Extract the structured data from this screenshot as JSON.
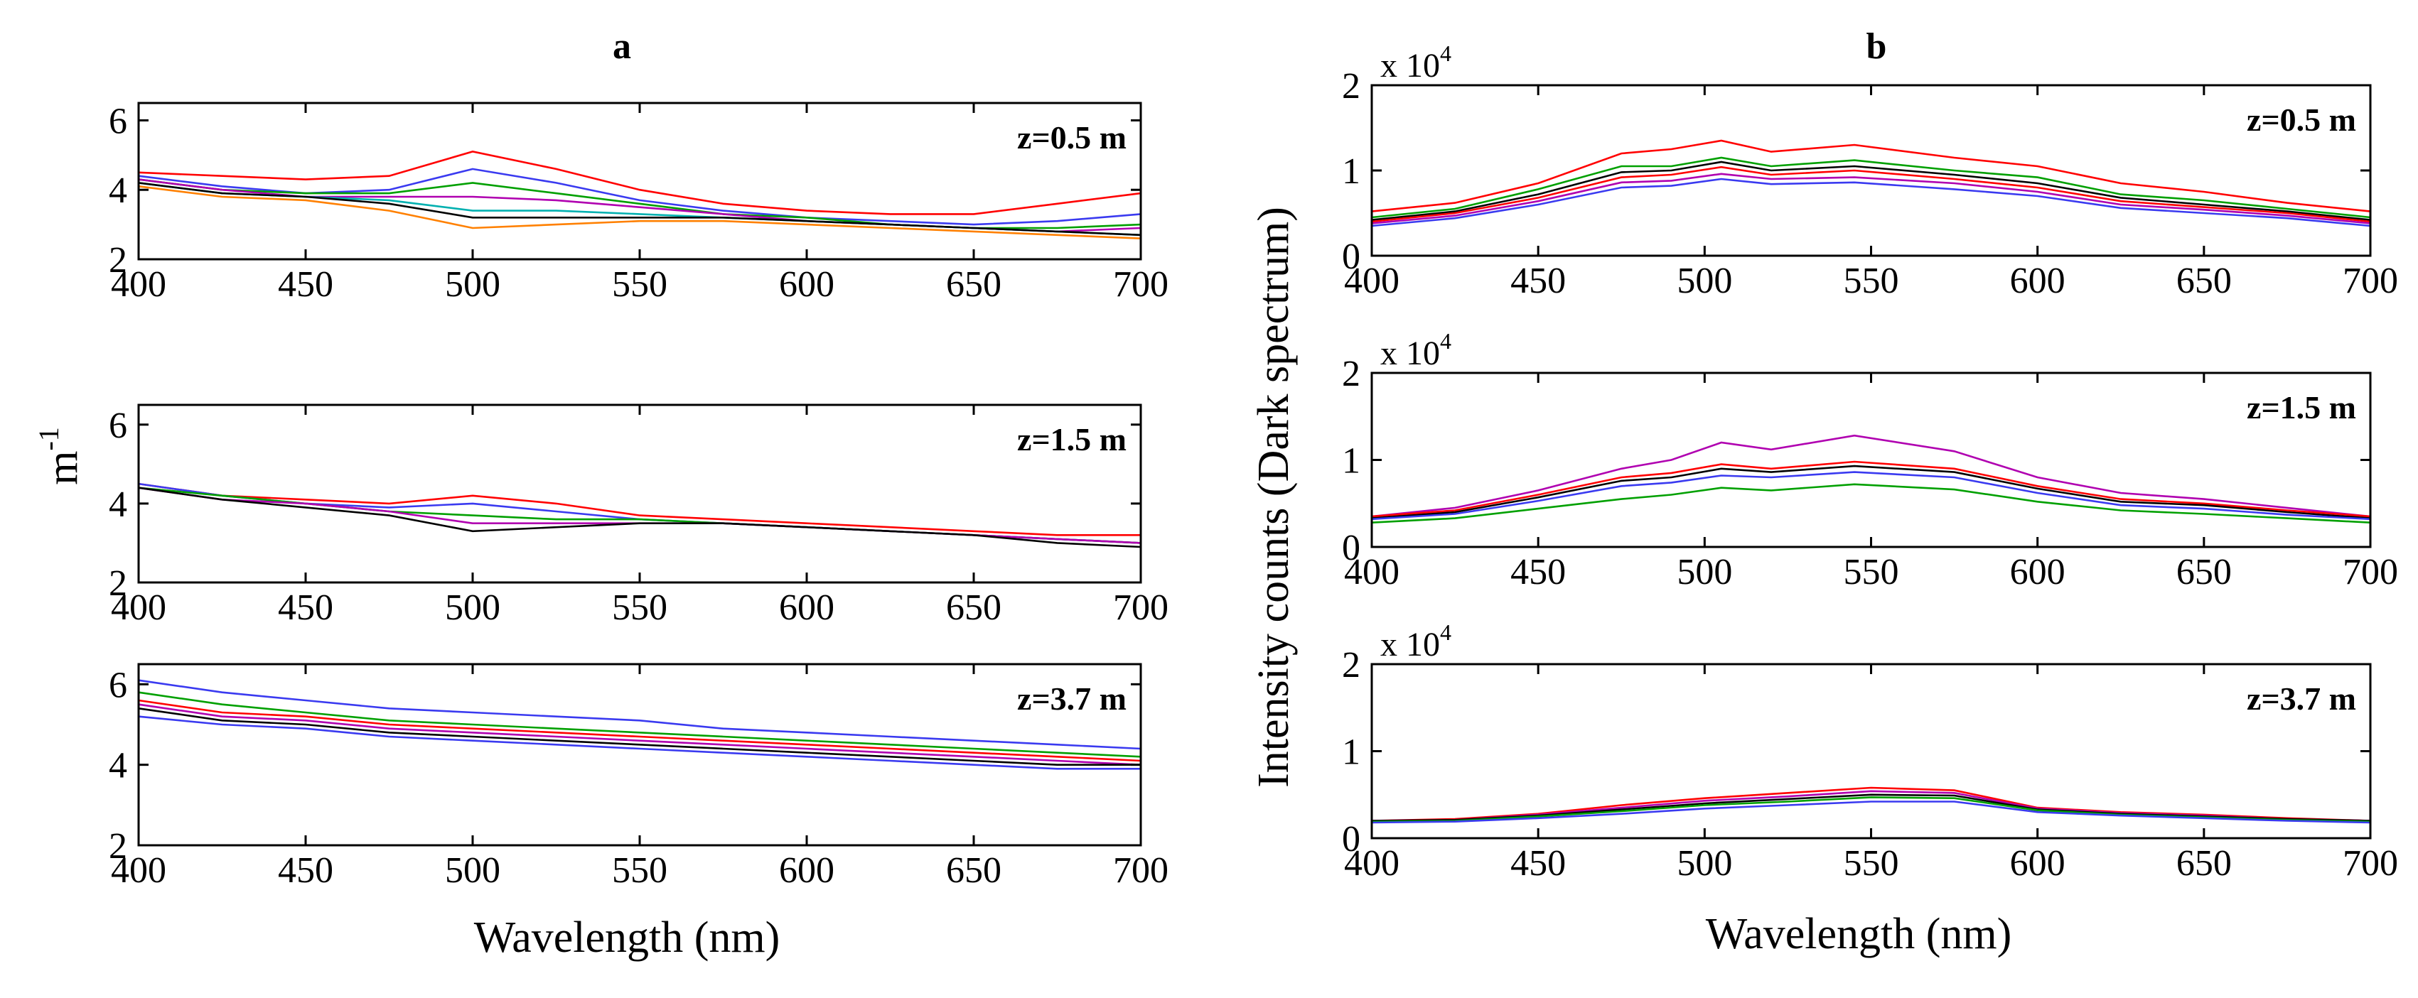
{
  "chart_data": [
    {
      "panel_tag": "a",
      "ylabel": "m",
      "ylabel_exponent": "-1",
      "xlabel": "Wavelength (nm)",
      "xlim": [
        400,
        700
      ],
      "xticks": [
        400,
        450,
        500,
        550,
        600,
        650,
        700
      ],
      "subplots": [
        {
          "type": "line",
          "label": "z=0.5 m",
          "ylim": [
            2,
            6.5
          ],
          "yticks": [
            2,
            4,
            6
          ],
          "x": [
            400,
            425,
            450,
            475,
            500,
            525,
            550,
            575,
            600,
            625,
            650,
            675,
            700
          ],
          "series": [
            {
              "color": "#ff0000",
              "values": [
                4.5,
                4.4,
                4.3,
                4.4,
                5.1,
                4.6,
                4.0,
                3.6,
                3.4,
                3.3,
                3.3,
                3.6,
                3.9
              ]
            },
            {
              "color": "#3a3af0",
              "values": [
                4.4,
                4.1,
                3.9,
                4.0,
                4.6,
                4.2,
                3.7,
                3.4,
                3.2,
                3.1,
                3.0,
                3.1,
                3.3
              ]
            },
            {
              "color": "#00a000",
              "values": [
                4.3,
                4.0,
                3.9,
                3.9,
                4.2,
                3.9,
                3.6,
                3.3,
                3.2,
                3.0,
                2.9,
                2.9,
                3.0
              ]
            },
            {
              "color": "#b000b0",
              "values": [
                4.3,
                4.0,
                3.8,
                3.8,
                3.8,
                3.7,
                3.5,
                3.3,
                3.1,
                3.0,
                2.9,
                2.8,
                2.9
              ]
            },
            {
              "color": "#00b0b0",
              "values": [
                4.2,
                3.9,
                3.8,
                3.7,
                3.4,
                3.4,
                3.3,
                3.2,
                3.1,
                3.0,
                2.9,
                2.8,
                2.7
              ]
            },
            {
              "color": "#000000",
              "values": [
                4.2,
                3.9,
                3.8,
                3.6,
                3.2,
                3.2,
                3.2,
                3.2,
                3.1,
                3.0,
                2.9,
                2.8,
                2.7
              ]
            },
            {
              "color": "#ff8000",
              "values": [
                4.1,
                3.8,
                3.7,
                3.4,
                2.9,
                3.0,
                3.1,
                3.1,
                3.0,
                2.9,
                2.8,
                2.7,
                2.6
              ]
            }
          ]
        },
        {
          "type": "line",
          "label": "z=1.5 m",
          "ylim": [
            2,
            6.5
          ],
          "yticks": [
            2,
            4,
            6
          ],
          "x": [
            400,
            425,
            450,
            475,
            500,
            525,
            550,
            575,
            600,
            625,
            650,
            675,
            700
          ],
          "series": [
            {
              "color": "#ff0000",
              "values": [
                4.5,
                4.2,
                4.1,
                4.0,
                4.2,
                4.0,
                3.7,
                3.6,
                3.5,
                3.4,
                3.3,
                3.2,
                3.2
              ]
            },
            {
              "color": "#3a3af0",
              "values": [
                4.5,
                4.2,
                4.0,
                3.9,
                4.0,
                3.8,
                3.6,
                3.5,
                3.4,
                3.3,
                3.2,
                3.1,
                3.0
              ]
            },
            {
              "color": "#00a000",
              "values": [
                4.4,
                4.2,
                4.0,
                3.8,
                3.7,
                3.6,
                3.6,
                3.5,
                3.4,
                3.3,
                3.2,
                3.1,
                3.0
              ]
            },
            {
              "color": "#b000b0",
              "values": [
                4.4,
                4.1,
                4.0,
                3.8,
                3.5,
                3.5,
                3.5,
                3.5,
                3.4,
                3.3,
                3.2,
                3.1,
                3.0
              ]
            },
            {
              "color": "#000000",
              "values": [
                4.4,
                4.1,
                3.9,
                3.7,
                3.3,
                3.4,
                3.5,
                3.5,
                3.4,
                3.3,
                3.2,
                3.0,
                2.9
              ]
            }
          ]
        },
        {
          "type": "line",
          "label": "z=3.7 m",
          "ylim": [
            2,
            6.5
          ],
          "yticks": [
            2,
            4,
            6
          ],
          "x": [
            400,
            425,
            450,
            475,
            500,
            525,
            550,
            575,
            600,
            625,
            650,
            675,
            700
          ],
          "series": [
            {
              "color": "#3a3af0",
              "values": [
                6.1,
                5.8,
                5.6,
                5.4,
                5.3,
                5.2,
                5.1,
                4.9,
                4.8,
                4.7,
                4.6,
                4.5,
                4.4
              ]
            },
            {
              "color": "#00a000",
              "values": [
                5.8,
                5.5,
                5.3,
                5.1,
                5.0,
                4.9,
                4.8,
                4.7,
                4.6,
                4.5,
                4.4,
                4.3,
                4.2
              ]
            },
            {
              "color": "#ff0000",
              "values": [
                5.6,
                5.3,
                5.2,
                5.0,
                4.9,
                4.8,
                4.7,
                4.6,
                4.5,
                4.4,
                4.3,
                4.2,
                4.1
              ]
            },
            {
              "color": "#b000b0",
              "values": [
                5.5,
                5.2,
                5.1,
                4.9,
                4.8,
                4.7,
                4.6,
                4.5,
                4.4,
                4.3,
                4.2,
                4.1,
                4.0
              ]
            },
            {
              "color": "#000000",
              "values": [
                5.4,
                5.1,
                5.0,
                4.8,
                4.7,
                4.6,
                4.5,
                4.4,
                4.3,
                4.2,
                4.1,
                4.0,
                4.0
              ]
            },
            {
              "color": "#3a3af0",
              "values": [
                5.2,
                5.0,
                4.9,
                4.7,
                4.6,
                4.5,
                4.4,
                4.3,
                4.2,
                4.1,
                4.0,
                3.9,
                3.9
              ]
            }
          ]
        }
      ]
    },
    {
      "panel_tag": "b",
      "ylabel": "Intensity counts (Dark spectrum)",
      "xlabel": "Wavelength (nm)",
      "multiplier_base": "x 10",
      "multiplier_exponent": "4",
      "xlim": [
        400,
        700
      ],
      "xticks": [
        400,
        450,
        500,
        550,
        600,
        650,
        700
      ],
      "subplots": [
        {
          "type": "line",
          "label": "z=0.5 m",
          "ylim": [
            0,
            2
          ],
          "yticks": [
            0,
            1,
            2
          ],
          "x": [
            400,
            425,
            450,
            475,
            490,
            505,
            520,
            545,
            575,
            600,
            625,
            650,
            675,
            700
          ],
          "series": [
            {
              "color": "#ff0000",
              "values": [
                0.52,
                0.62,
                0.85,
                1.2,
                1.25,
                1.35,
                1.22,
                1.3,
                1.15,
                1.05,
                0.85,
                0.75,
                0.62,
                0.52
              ]
            },
            {
              "color": "#00a000",
              "values": [
                0.45,
                0.55,
                0.78,
                1.05,
                1.05,
                1.15,
                1.05,
                1.12,
                1.0,
                0.92,
                0.72,
                0.65,
                0.55,
                0.45
              ]
            },
            {
              "color": "#000000",
              "values": [
                0.42,
                0.52,
                0.72,
                0.98,
                1.0,
                1.1,
                1.0,
                1.05,
                0.95,
                0.85,
                0.68,
                0.6,
                0.52,
                0.42
              ]
            },
            {
              "color": "#ff0000",
              "values": [
                0.4,
                0.5,
                0.68,
                0.92,
                0.95,
                1.04,
                0.95,
                1.0,
                0.9,
                0.8,
                0.64,
                0.57,
                0.5,
                0.4
              ]
            },
            {
              "color": "#b000b0",
              "values": [
                0.38,
                0.47,
                0.64,
                0.86,
                0.88,
                0.96,
                0.9,
                0.92,
                0.85,
                0.75,
                0.6,
                0.54,
                0.47,
                0.38
              ]
            },
            {
              "color": "#3a3af0",
              "values": [
                0.35,
                0.44,
                0.6,
                0.8,
                0.82,
                0.9,
                0.84,
                0.86,
                0.78,
                0.7,
                0.56,
                0.5,
                0.44,
                0.35
              ]
            }
          ]
        },
        {
          "type": "line",
          "label": "z=1.5 m",
          "ylim": [
            0,
            2
          ],
          "yticks": [
            0,
            1,
            2
          ],
          "x": [
            400,
            425,
            450,
            475,
            490,
            505,
            520,
            545,
            575,
            600,
            625,
            650,
            675,
            700
          ],
          "series": [
            {
              "color": "#b000b0",
              "values": [
                0.35,
                0.45,
                0.65,
                0.9,
                1.0,
                1.2,
                1.12,
                1.28,
                1.1,
                0.8,
                0.62,
                0.55,
                0.45,
                0.35
              ]
            },
            {
              "color": "#ff0000",
              "values": [
                0.35,
                0.42,
                0.6,
                0.8,
                0.85,
                0.95,
                0.9,
                0.98,
                0.9,
                0.7,
                0.55,
                0.5,
                0.42,
                0.35
              ]
            },
            {
              "color": "#000000",
              "values": [
                0.33,
                0.4,
                0.57,
                0.76,
                0.8,
                0.9,
                0.86,
                0.93,
                0.86,
                0.67,
                0.52,
                0.48,
                0.4,
                0.33
              ]
            },
            {
              "color": "#3a3af0",
              "values": [
                0.32,
                0.38,
                0.53,
                0.7,
                0.74,
                0.82,
                0.8,
                0.86,
                0.8,
                0.62,
                0.48,
                0.44,
                0.37,
                0.32
              ]
            },
            {
              "color": "#00a000",
              "values": [
                0.28,
                0.33,
                0.44,
                0.55,
                0.6,
                0.68,
                0.65,
                0.72,
                0.66,
                0.52,
                0.42,
                0.38,
                0.33,
                0.28
              ]
            }
          ]
        },
        {
          "type": "line",
          "label": "z=3.7 m",
          "ylim": [
            0,
            2
          ],
          "yticks": [
            0,
            1,
            2
          ],
          "x": [
            400,
            425,
            450,
            475,
            500,
            525,
            550,
            575,
            600,
            625,
            650,
            675,
            700
          ],
          "series": [
            {
              "color": "#ff0000",
              "values": [
                0.2,
                0.22,
                0.28,
                0.38,
                0.46,
                0.52,
                0.58,
                0.55,
                0.35,
                0.3,
                0.27,
                0.23,
                0.2
              ]
            },
            {
              "color": "#b000b0",
              "values": [
                0.2,
                0.21,
                0.27,
                0.35,
                0.43,
                0.48,
                0.54,
                0.52,
                0.34,
                0.29,
                0.26,
                0.22,
                0.2
              ]
            },
            {
              "color": "#000000",
              "values": [
                0.2,
                0.21,
                0.26,
                0.33,
                0.4,
                0.45,
                0.5,
                0.49,
                0.33,
                0.28,
                0.25,
                0.22,
                0.2
              ]
            },
            {
              "color": "#00a000",
              "values": [
                0.19,
                0.2,
                0.25,
                0.31,
                0.38,
                0.42,
                0.47,
                0.46,
                0.32,
                0.27,
                0.24,
                0.21,
                0.19
              ]
            },
            {
              "color": "#3a3af0",
              "values": [
                0.18,
                0.19,
                0.23,
                0.28,
                0.34,
                0.38,
                0.42,
                0.42,
                0.3,
                0.26,
                0.23,
                0.2,
                0.18
              ]
            }
          ]
        }
      ]
    }
  ]
}
